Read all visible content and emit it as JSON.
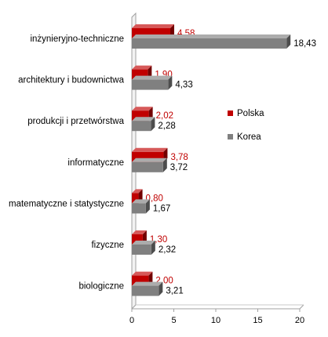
{
  "chart_data": {
    "type": "bar",
    "orientation": "horizontal",
    "style": "3d",
    "categories": [
      "inżynieryjno-techniczne",
      "architektury i budownictwa",
      "produkcji i przetwórstwa",
      "informatyczne",
      "matematyczne i statystyczne",
      "fizyczne",
      "biologiczne"
    ],
    "series": [
      {
        "name": "Polska",
        "color": "#c00000",
        "values": [
          4.58,
          1.9,
          2.02,
          3.78,
          0.8,
          1.3,
          2.0
        ]
      },
      {
        "name": "Korea",
        "color": "#808080",
        "values": [
          18.43,
          4.33,
          2.28,
          3.72,
          1.67,
          2.32,
          3.21
        ]
      }
    ],
    "data_labels": [
      [
        "4,58",
        "1,90",
        "2,02",
        "3,78",
        "0,80",
        "1,30",
        "2,00"
      ],
      [
        "18,43",
        "4,33",
        "2,28",
        "3,72",
        "1,67",
        "2,32",
        "3,21"
      ]
    ],
    "label_colors": [
      "#c00000",
      "#000000"
    ],
    "x_ticks": [
      0,
      5,
      10,
      15,
      20
    ],
    "x_tick_labels": [
      "0",
      "5",
      "10",
      "15",
      "20"
    ],
    "xlim": [
      0,
      20
    ],
    "grid": false,
    "legend_position": "right",
    "title": "",
    "xlabel": "",
    "ylabel": ""
  }
}
